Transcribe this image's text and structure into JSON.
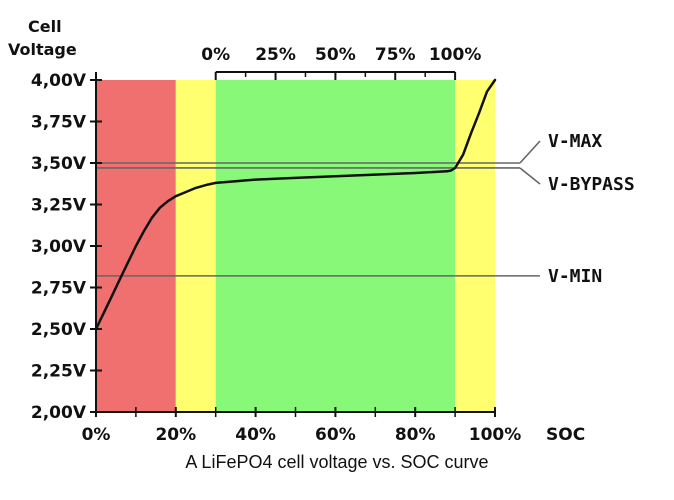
{
  "chart_data": {
    "type": "line",
    "title": "",
    "caption": "A LiFePO4 cell voltage vs. SOC curve",
    "ylabel": [
      "Cell",
      "Voltage"
    ],
    "xlabel": "SOC",
    "xlim": [
      0,
      100
    ],
    "ylim": [
      2.0,
      4.0
    ],
    "x_ticks": [
      0,
      20,
      40,
      60,
      80,
      100
    ],
    "x_tick_labels": [
      "0%",
      "20%",
      "40%",
      "60%",
      "80%",
      "100%"
    ],
    "y_ticks": [
      2.0,
      2.25,
      2.5,
      2.75,
      3.0,
      3.25,
      3.5,
      3.75,
      4.0
    ],
    "y_tick_labels": [
      "2,00V",
      "2,25V",
      "2,50V",
      "2,75V",
      "3,00V",
      "3,25V",
      "3,50V",
      "3,75V",
      "4,00V"
    ],
    "top_axis": {
      "range": [
        30,
        90
      ],
      "ticks": [
        30,
        45,
        60,
        75,
        90
      ],
      "labels": [
        "0%",
        "25%",
        "50%",
        "75%",
        "100%"
      ]
    },
    "zones": [
      {
        "from": 0,
        "to": 20,
        "color": "#f07070"
      },
      {
        "from": 20,
        "to": 30,
        "color": "#ffff70"
      },
      {
        "from": 30,
        "to": 90,
        "color": "#88f878"
      },
      {
        "from": 90,
        "to": 100,
        "color": "#ffff70"
      }
    ],
    "series": [
      {
        "name": "Cell voltage",
        "x": [
          0,
          2,
          4,
          6,
          8,
          10,
          12,
          14,
          16,
          18,
          20,
          22,
          25,
          28,
          30,
          35,
          40,
          50,
          60,
          70,
          80,
          88,
          89,
          90,
          92,
          94,
          96,
          98,
          100
        ],
        "y": [
          2.5,
          2.6,
          2.7,
          2.8,
          2.9,
          3.0,
          3.09,
          3.17,
          3.23,
          3.27,
          3.3,
          3.32,
          3.35,
          3.37,
          3.38,
          3.39,
          3.4,
          3.41,
          3.42,
          3.43,
          3.44,
          3.45,
          3.455,
          3.47,
          3.55,
          3.68,
          3.8,
          3.93,
          4.0
        ]
      }
    ],
    "reference_lines": [
      {
        "name": "V-MAX",
        "y": 3.5
      },
      {
        "name": "V-BYPASS",
        "y": 3.47
      },
      {
        "name": "V-MIN",
        "y": 2.82
      }
    ]
  }
}
